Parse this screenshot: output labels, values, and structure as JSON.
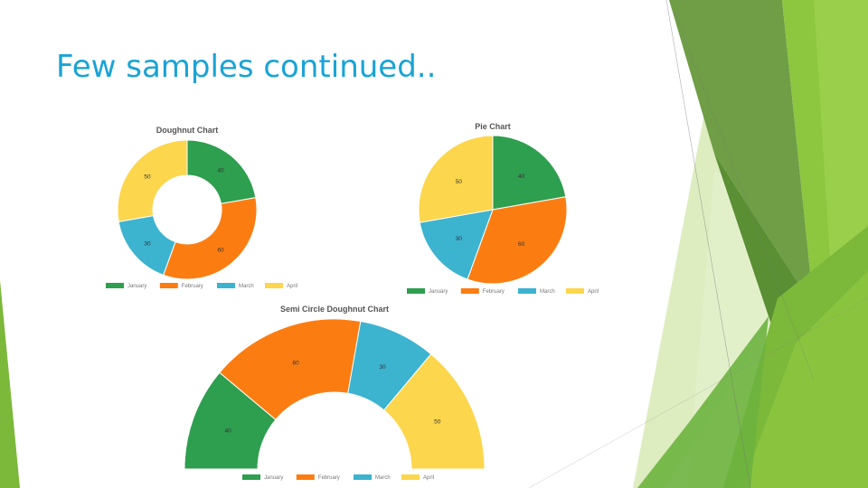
{
  "slide": {
    "title": "Few samples continued..",
    "accent_greens": [
      "#5b9e35",
      "#7cb83a",
      "#8dc63f",
      "#d9ebb9"
    ]
  },
  "chart_data": [
    {
      "type": "doughnut",
      "title": "Doughnut Chart",
      "categories": [
        "January",
        "February",
        "March",
        "April"
      ],
      "values": [
        40,
        60,
        30,
        50
      ],
      "colors": [
        "#2e9e4f",
        "#fb7d12",
        "#3cb3cf",
        "#fcd64c"
      ],
      "legend": "bottom"
    },
    {
      "type": "pie",
      "title": "Pie Chart",
      "categories": [
        "January",
        "February",
        "March",
        "April"
      ],
      "values": [
        40,
        60,
        30,
        50
      ],
      "colors": [
        "#2e9e4f",
        "#fb7d12",
        "#3cb3cf",
        "#fcd64c"
      ],
      "legend": "bottom"
    },
    {
      "type": "semi-doughnut",
      "title": "Semi Circle Doughnut Chart",
      "categories": [
        "January",
        "February",
        "March",
        "April"
      ],
      "values": [
        40,
        60,
        30,
        50
      ],
      "colors": [
        "#2e9e4f",
        "#fb7d12",
        "#3cb3cf",
        "#fcd64c"
      ],
      "legend": "bottom"
    }
  ]
}
